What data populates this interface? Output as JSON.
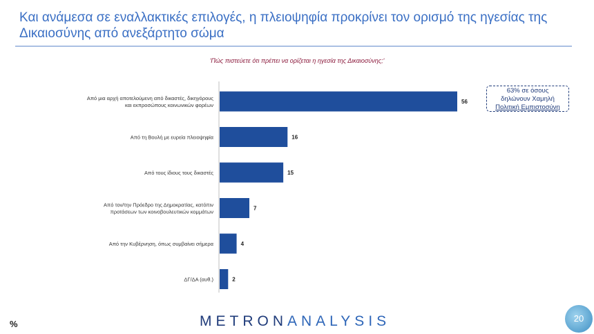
{
  "header": {
    "title": "Και ανάμεσα σε εναλλακτικές επιλογές, η πλειοψηφία προκρίνει τον ορισμό της ηγεσίας της Δικαιοσύνης από ανεξάρτητο σώμα"
  },
  "question": "'Πώς πιστεύετε ότι πρέπει να ορίζεται η ηγεσία της Δικαιοσύνης;'",
  "chart_data": {
    "type": "bar",
    "orientation": "horizontal",
    "categories": [
      [
        "Από μια αρχή αποτελούμενη από δικαστές, δικηγόρους",
        "και εκπροσώπους κοινωνικών φορέων"
      ],
      [
        "Από τη Βουλή με ευρεία πλειοψηφία"
      ],
      [
        "Από τους ίδιους τους δικαστές"
      ],
      [
        "Από τον/την Πρόεδρο της Δημοκρατίας, κατόπιν",
        "προτάσεων των κοινοβουλευτικών κομμάτων"
      ],
      [
        "Από την Κυβέρνηση, όπως συμβαίνει σήμερα"
      ],
      [
        "ΔΓ/ΔΑ (αυθ.)"
      ]
    ],
    "values": [
      56,
      16,
      15,
      7,
      4,
      2
    ],
    "xlim": [
      0,
      56
    ],
    "bar_color": "#1f4e9c",
    "unit_label": "%",
    "grid": false
  },
  "callout": {
    "lines": [
      "63% σε όσους",
      "δηλώνουν Χαμηλή",
      "Πολιτική Εμπιστοσύνη"
    ]
  },
  "footer": {
    "unit": "%",
    "brand_part1": "METRON",
    "brand_part2": "ANALYSIS",
    "page_number": "20"
  }
}
